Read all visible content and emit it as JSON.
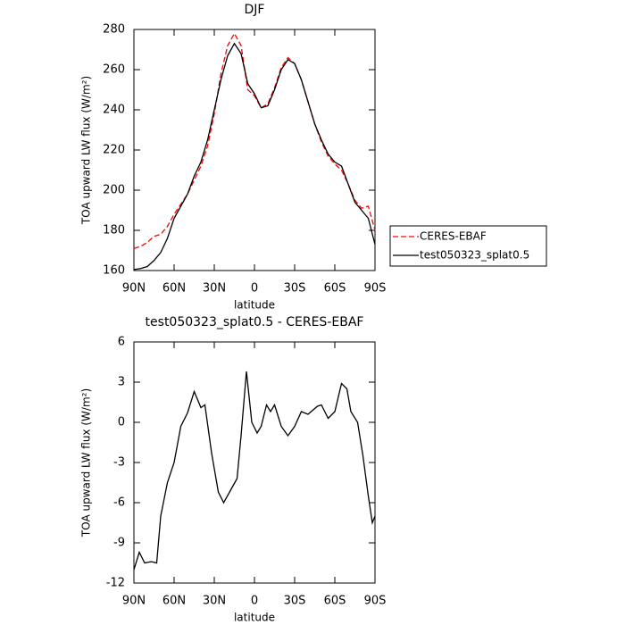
{
  "chart_data": [
    {
      "type": "line",
      "title": "DJF",
      "xlabel": "latitude",
      "ylabel": "TOA upward  LW flux (W/m²)",
      "x": [
        90,
        85,
        80,
        75,
        70,
        65,
        60,
        55,
        50,
        45,
        40,
        35,
        30,
        25,
        20,
        15,
        10,
        5,
        0,
        -5,
        -10,
        -15,
        -20,
        -25,
        -30,
        -35,
        -40,
        -45,
        -50,
        -55,
        -60,
        -65,
        -70,
        -75,
        -80,
        -85,
        -90
      ],
      "series": [
        {
          "name": "CERES-EBAF",
          "color": "#ff0000",
          "style": "dashed",
          "values": [
            171,
            172,
            174,
            177,
            178,
            182,
            188,
            193,
            198,
            205,
            212,
            222,
            238,
            258,
            272,
            278,
            272,
            250,
            247,
            241,
            243,
            251,
            261,
            266,
            263,
            255,
            244,
            233,
            224,
            217,
            213,
            210,
            203,
            195,
            191,
            192,
            180
          ]
        },
        {
          "name": "test050323_splat0.5",
          "color": "#000000",
          "style": "solid",
          "values": [
            160.5,
            161,
            162,
            165,
            169,
            176,
            186,
            192,
            198,
            207,
            214,
            225,
            240,
            255,
            267,
            273,
            268,
            253,
            248,
            241,
            242,
            250,
            260,
            265,
            263,
            255,
            244,
            233,
            225,
            218,
            214,
            212,
            203,
            194,
            190,
            186,
            173
          ]
        }
      ],
      "xlim": [
        90,
        -90
      ],
      "xticks": [
        {
          "value": 90,
          "label": "90N"
        },
        {
          "value": 60,
          "label": "60N"
        },
        {
          "value": 30,
          "label": "30N"
        },
        0,
        {
          "value": -30,
          "label": "30S"
        },
        {
          "value": -60,
          "label": "60S"
        },
        {
          "value": -90,
          "label": "90S"
        }
      ],
      "ylim": [
        160,
        280
      ],
      "yticks": [
        160,
        180,
        200,
        220,
        240,
        260,
        280
      ],
      "legend": "outside-right"
    },
    {
      "type": "line",
      "title": "test050323_splat0.5 - CERES-EBAF",
      "xlabel": "latitude",
      "ylabel": "TOA upward  LW flux (W/m²)",
      "x": [
        90,
        86,
        82,
        77,
        73,
        70,
        65,
        60,
        55,
        50,
        45,
        40,
        37,
        32,
        27,
        23,
        18,
        13,
        10,
        6,
        2,
        -2,
        -5,
        -9,
        -12,
        -15,
        -20,
        -25,
        -30,
        -35,
        -40,
        -47,
        -50,
        -55,
        -60,
        -65,
        -69,
        -72,
        -77,
        -81,
        -85,
        -88,
        -90
      ],
      "series": [
        {
          "name": "test050323_splat0.5 - CERES-EBAF",
          "color": "#000000",
          "style": "solid",
          "values": [
            -11,
            -9.7,
            -10.5,
            -10.4,
            -10.5,
            -7,
            -4.5,
            -3,
            -0.3,
            0.7,
            2.3,
            1.1,
            1.3,
            -2.3,
            -5.2,
            -6,
            -5.1,
            -4.2,
            -1,
            3.8,
            0,
            -0.8,
            -0.3,
            1.3,
            0.8,
            1.3,
            -0.3,
            -1,
            -0.3,
            0.8,
            0.6,
            1.2,
            1.3,
            0.3,
            0.8,
            2.9,
            2.5,
            0.8,
            0,
            -2.5,
            -5.5,
            -7.5,
            -7
          ]
        }
      ],
      "xlim": [
        90,
        -90
      ],
      "xticks": [
        {
          "value": 90,
          "label": "90N"
        },
        {
          "value": 60,
          "label": "60N"
        },
        {
          "value": 30,
          "label": "30N"
        },
        0,
        {
          "value": -30,
          "label": "30S"
        },
        {
          "value": -60,
          "label": "60S"
        },
        {
          "value": -90,
          "label": "90S"
        }
      ],
      "ylim": [
        -12,
        6
      ],
      "yticks": [
        -12,
        -9,
        -6,
        -3,
        0,
        3,
        6
      ]
    }
  ]
}
